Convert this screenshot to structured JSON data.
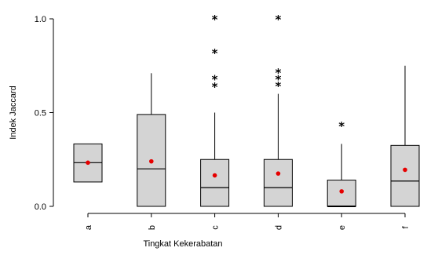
{
  "chart_data": {
    "type": "boxplot",
    "xlabel": "Tingkat Kekerabatan",
    "ylabel": "Indek Jaccard",
    "ylim": [
      0.0,
      1.0
    ],
    "yticks": [
      {
        "value": 0.0,
        "label": "0.0"
      },
      {
        "value": 0.5,
        "label": "0.5"
      },
      {
        "value": 1.0,
        "label": "1.0"
      }
    ],
    "grid": false,
    "legend": "none",
    "categories": [
      "a",
      "b",
      "c",
      "d",
      "e",
      "f"
    ],
    "boxes": [
      {
        "category": "a",
        "whisker_low": 0.13,
        "q1": 0.13,
        "median": 0.233,
        "q3": 0.333,
        "whisker_high": 0.333,
        "mean": 0.233,
        "outliers": []
      },
      {
        "category": "b",
        "whisker_low": 0.0,
        "q1": 0.0,
        "median": 0.2,
        "q3": 0.49,
        "whisker_high": 0.71,
        "mean": 0.24,
        "outliers": []
      },
      {
        "category": "c",
        "whisker_low": 0.0,
        "q1": 0.0,
        "median": 0.1,
        "q3": 0.25,
        "whisker_high": 0.5,
        "mean": 0.165,
        "outliers": [
          0.64,
          0.68,
          0.82,
          1.0
        ]
      },
      {
        "category": "d",
        "whisker_low": 0.0,
        "q1": 0.0,
        "median": 0.1,
        "q3": 0.25,
        "whisker_high": 0.6,
        "mean": 0.175,
        "outliers": [
          0.645,
          0.68,
          0.715,
          1.0
        ]
      },
      {
        "category": "e",
        "whisker_low": 0.0,
        "q1": 0.0,
        "median": 0.0,
        "q3": 0.14,
        "whisker_high": 0.333,
        "mean": 0.08,
        "outliers": [
          0.43
        ]
      },
      {
        "category": "f",
        "whisker_low": 0.0,
        "q1": 0.0,
        "median": 0.135,
        "q3": 0.325,
        "whisker_high": 0.75,
        "mean": 0.195,
        "outliers": []
      }
    ],
    "colors": {
      "box_fill": "#d4d4d4",
      "box_stroke": "#000000",
      "median_line": "#000000",
      "mean_marker": "#e60000",
      "outlier_marker": "#000000",
      "axis": "#000000"
    },
    "outlier_marker": "*"
  }
}
